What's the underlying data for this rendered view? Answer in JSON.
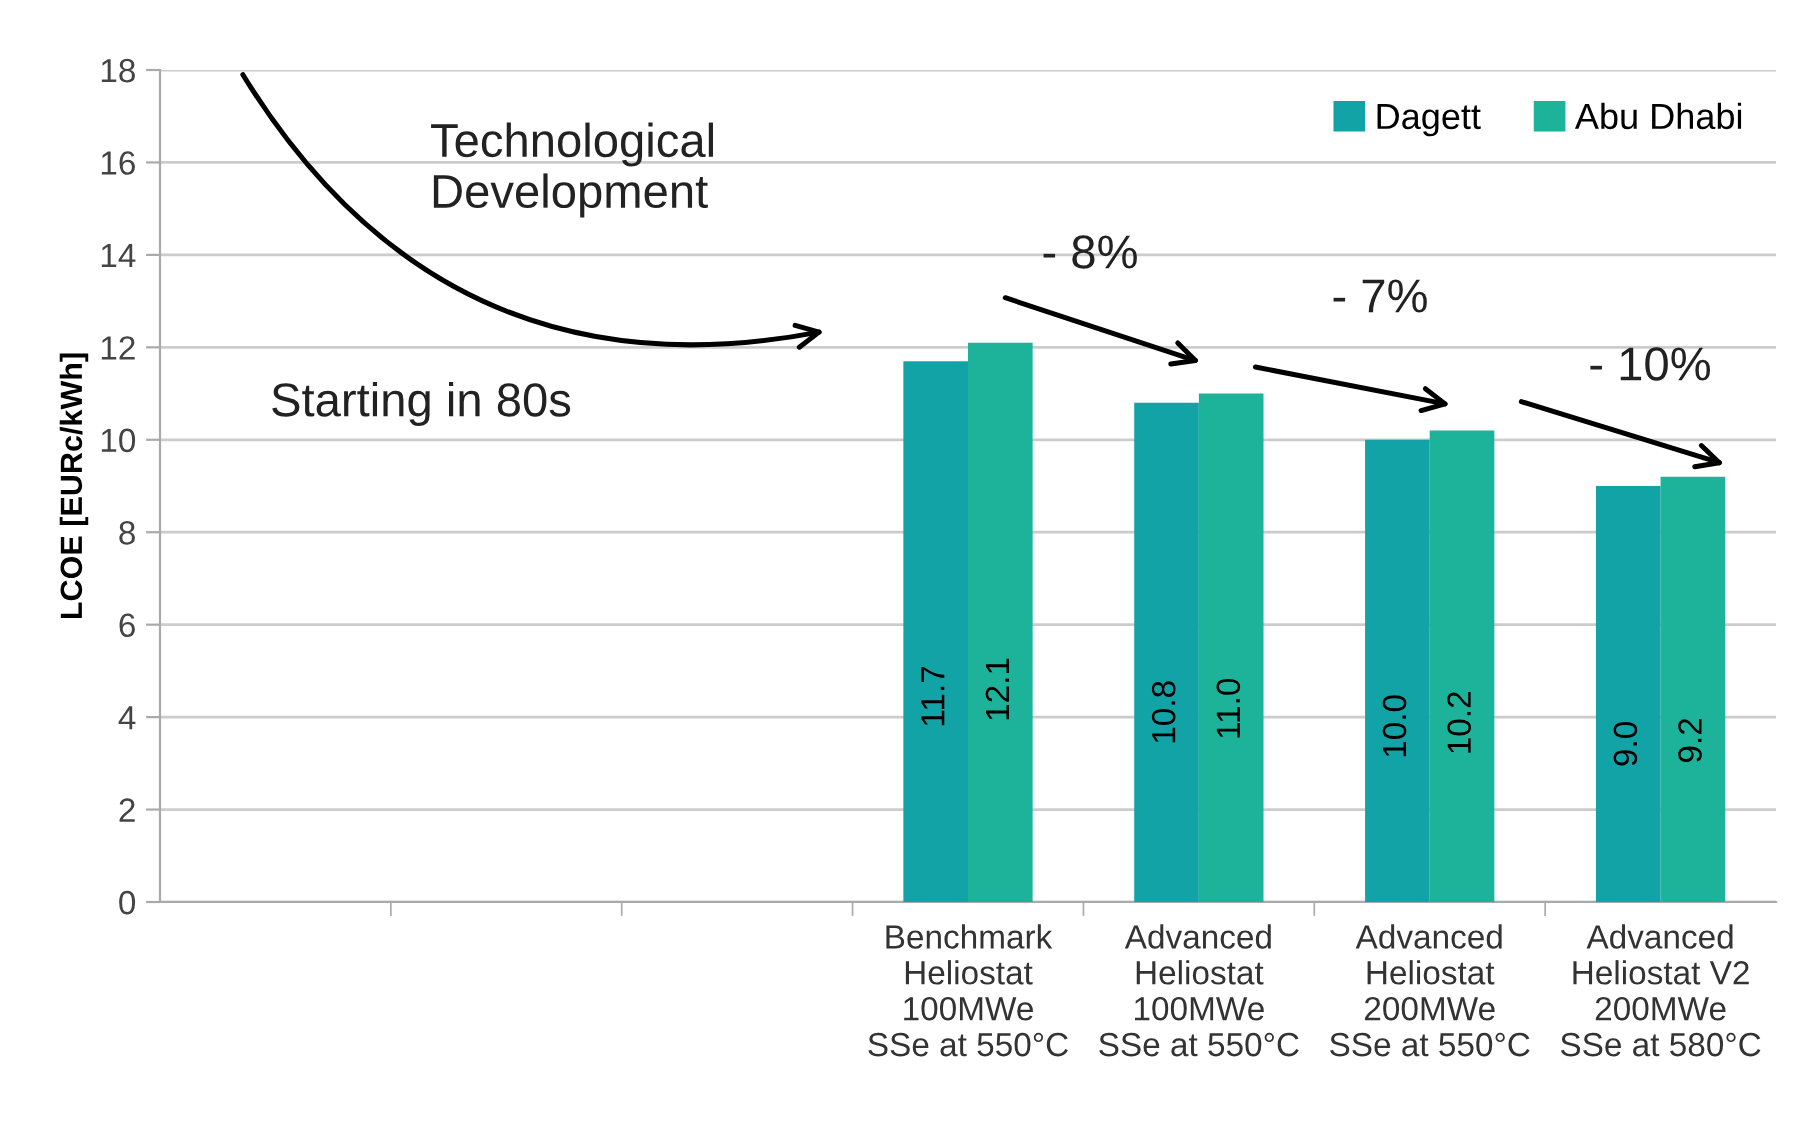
{
  "chart_data": {
    "type": "bar",
    "ylabel": "LCOE [EURc/kWh]",
    "categories": [
      null,
      null,
      null,
      "Benchmark\nHeliostat\n100MWe\nSSe at 550°C",
      "Advanced\nHeliostat\n100MWe\nSSe at 550°C",
      "Advanced\nHeliostat\n200MWe\nSSe at 550°C",
      "Advanced\nHeliostat V2\n200MWe\nSSe at 580°C"
    ],
    "series": [
      {
        "name": "Dagett",
        "color": "#12a3a6",
        "values": [
          null,
          null,
          null,
          11.7,
          10.8,
          10.0,
          9.0
        ],
        "value_labels": [
          null,
          null,
          null,
          "11.7",
          "10.8",
          "10.0",
          "9.0"
        ]
      },
      {
        "name": "Abu Dhabi",
        "color": "#1db39b",
        "values": [
          null,
          null,
          null,
          12.1,
          11.0,
          10.2,
          9.2
        ],
        "value_labels": [
          null,
          null,
          null,
          "12.1",
          "11.0",
          "10.2",
          "9.2"
        ]
      }
    ],
    "ylim": [
      0,
      18
    ],
    "yticks": [
      0,
      2,
      4,
      6,
      8,
      10,
      12,
      14,
      16,
      18
    ],
    "grid": "y",
    "legend": "top right",
    "annotations": [
      "Technological\nDevelopment",
      "Starting in 80s",
      "- 8%",
      "- 7%",
      "- 10%"
    ]
  }
}
